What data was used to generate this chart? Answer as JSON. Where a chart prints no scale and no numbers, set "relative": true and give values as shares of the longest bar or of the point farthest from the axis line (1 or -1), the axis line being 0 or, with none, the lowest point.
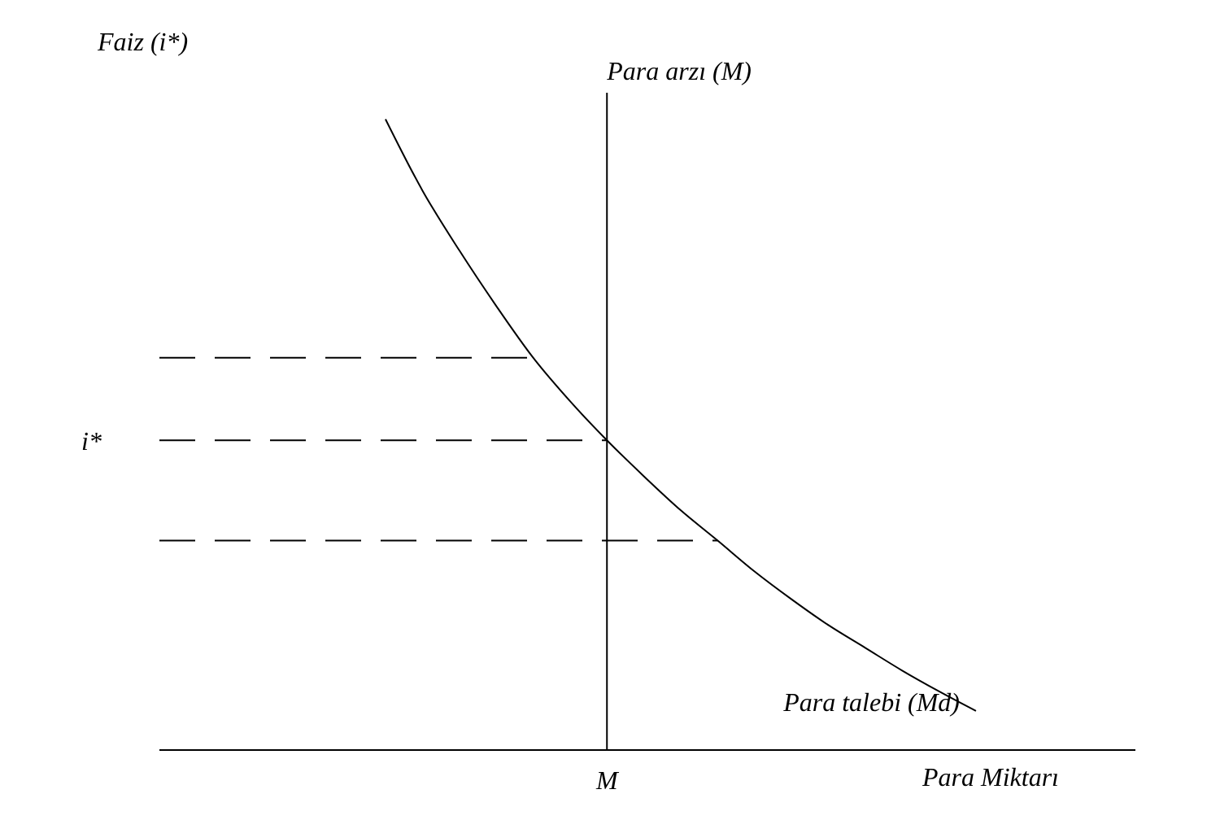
{
  "chart_data": {
    "type": "line",
    "relative": true,
    "xlabel": "Para Miktarı",
    "categories": [
      null,
      null,
      null,
      null,
      null,
      null,
      null,
      null,
      null,
      null,
      null,
      null,
      null,
      null,
      null,
      null,
      null
    ],
    "annotations": [
      "Para arzı (M)",
      "M",
      "Faiz (i*)"
    ],
    "series": [
      {
        "name": "Para talebi (Md)",
        "color": "#000000",
        "values": [
          1.0,
          0.887,
          0.792,
          0.704,
          0.622,
          0.553,
          0.491,
          0.434,
          0.38,
          0.332,
          0.283,
          0.239,
          0.198,
          0.162,
          0.126,
          0.093,
          0.062
        ]
      }
    ],
    "ref_lines": [
      {
        "axis": "y",
        "value": 0.622,
        "color": "#000000",
        "line_style": "dashed"
      },
      {
        "axis": "y",
        "value": 0.491,
        "label": "i*",
        "color": "#000000",
        "line_style": "dashed"
      },
      {
        "axis": "y",
        "value": 0.332,
        "color": "#000000",
        "line_style": "dashed"
      }
    ],
    "marker": "none",
    "line_style": "solid",
    "grid": false,
    "legend": false
  }
}
